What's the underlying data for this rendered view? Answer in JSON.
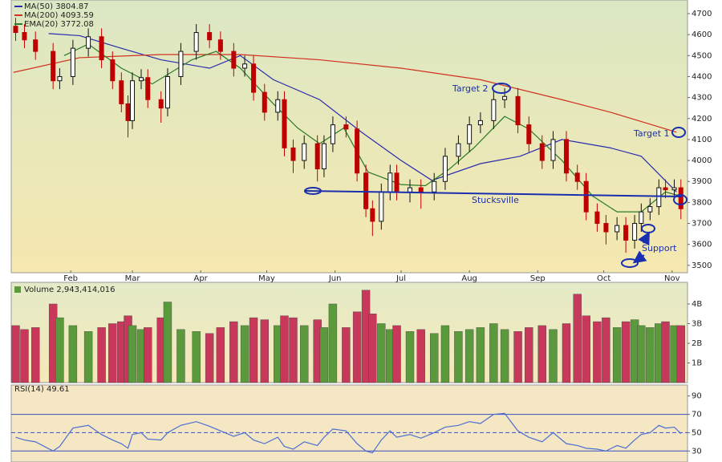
{
  "chart_data": [
    {
      "type": "candlestick",
      "x": [
        7,
        11,
        16,
        24,
        27,
        33,
        40,
        46,
        51,
        55,
        58,
        60,
        64,
        67,
        73,
        76,
        82,
        89,
        95,
        100,
        106,
        111,
        115,
        120,
        126,
        129,
        133,
        138,
        144,
        147,
        151,
        157,
        162,
        166,
        169,
        173,
        177,
        180,
        186,
        191,
        197,
        202,
        208,
        213,
        218,
        224,
        229,
        235,
        240,
        246,
        251,
        257,
        262,
        266,
        271,
        275,
        280,
        284,
        288,
        291,
        295,
        299,
        302,
        306,
        309
      ],
      "open": [
        4640,
        4610,
        4575,
        4520,
        4380,
        4400,
        4535,
        4590,
        4480,
        4380,
        4270,
        4190,
        4380,
        4395,
        4290,
        4250,
        4400,
        4520,
        4610,
        4575,
        4520,
        4440,
        4460,
        4325,
        4230,
        4290,
        4060,
        4000,
        4080,
        3960,
        4080,
        4170,
        4150,
        3940,
        3770,
        3710,
        3850,
        3940,
        3850,
        3870,
        3850,
        3900,
        4020,
        4080,
        4170,
        4190,
        4290,
        4305,
        4170,
        4080,
        4000,
        4100,
        3940,
        3900,
        3755,
        3700,
        3660,
        3690,
        3620,
        3700,
        3755,
        3780,
        3870,
        3860,
        3870
      ],
      "high": [
        4680,
        4650,
        4615,
        4560,
        4440,
        4575,
        4630,
        4630,
        4520,
        4420,
        4310,
        4420,
        4435,
        4435,
        4330,
        4440,
        4560,
        4650,
        4650,
        4615,
        4560,
        4500,
        4500,
        4365,
        4330,
        4330,
        4100,
        4120,
        4120,
        4120,
        4210,
        4210,
        4190,
        3980,
        3810,
        3890,
        3980,
        3980,
        3910,
        3910,
        3940,
        4060,
        4120,
        4210,
        4230,
        4330,
        4345,
        4345,
        4210,
        4120,
        4140,
        4140,
        3980,
        3940,
        3795,
        3740,
        3730,
        3730,
        3740,
        3795,
        3820,
        3910,
        3910,
        3910,
        3910
      ],
      "low": [
        4570,
        4535,
        4480,
        4340,
        4340,
        4360,
        4495,
        4440,
        4340,
        4230,
        4110,
        4150,
        4340,
        4250,
        4180,
        4210,
        4360,
        4480,
        4535,
        4480,
        4400,
        4400,
        4285,
        4190,
        4190,
        4020,
        3940,
        3960,
        3900,
        3920,
        4040,
        4110,
        3900,
        3730,
        3640,
        3670,
        3810,
        3810,
        3800,
        3770,
        3810,
        3860,
        3980,
        4040,
        4130,
        4150,
        4250,
        4130,
        4040,
        3960,
        3960,
        3900,
        3860,
        3715,
        3660,
        3600,
        3620,
        3560,
        3580,
        3660,
        3715,
        3740,
        3820,
        3820,
        3720
      ],
      "close": [
        4610,
        4575,
        4520,
        4380,
        4400,
        4535,
        4590,
        4480,
        4380,
        4270,
        4190,
        4380,
        4395,
        4290,
        4250,
        4400,
        4520,
        4610,
        4575,
        4520,
        4440,
        4460,
        4325,
        4230,
        4290,
        4060,
        4000,
        4080,
        3960,
        4080,
        4170,
        4150,
        3940,
        3770,
        3710,
        3850,
        3940,
        3850,
        3870,
        3850,
        3900,
        4020,
        4080,
        4170,
        4190,
        4290,
        4305,
        4170,
        4080,
        4000,
        4100,
        3940,
        3900,
        3755,
        3700,
        3660,
        3690,
        3620,
        3700,
        3755,
        3780,
        3870,
        3860,
        3870,
        3770
      ],
      "up_color": "#111111",
      "down_color": "#c00000",
      "overlays": [
        {
          "name": "MA(50)",
          "legend_value": 3804.87,
          "color": "#2b2bb0",
          "x": [
            22,
            36,
            55,
            73,
            95,
            109,
            124,
            145,
            164,
            182,
            196,
            218,
            236,
            255,
            277,
            291,
            307
          ],
          "values": [
            4605,
            4595,
            4535,
            4480,
            4440,
            4500,
            4385,
            4290,
            4135,
            4000,
            3905,
            3985,
            4020,
            4100,
            4060,
            4020,
            3850
          ]
        },
        {
          "name": "MA(200)",
          "legend_value": 4093.59,
          "color": "#d03020",
          "x": [
            6,
            36,
            73,
            109,
            145,
            182,
            218,
            255,
            277,
            307
          ],
          "values": [
            4420,
            4490,
            4505,
            4505,
            4480,
            4440,
            4385,
            4290,
            4230,
            4135
          ]
        },
        {
          "name": "EMA(20)",
          "legend_value": 3772.08,
          "color": "#2a7a2a",
          "x": [
            29,
            40,
            55,
            69,
            87,
            98,
            109,
            124,
            135,
            145,
            156,
            167,
            182,
            193,
            204,
            215,
            229,
            240,
            255,
            269,
            280,
            291,
            302,
            309
          ],
          "values": [
            4500,
            4555,
            4440,
            4365,
            4480,
            4520,
            4440,
            4270,
            4155,
            4080,
            4155,
            3945,
            3885,
            3880,
            3960,
            4060,
            4210,
            4150,
            4000,
            3830,
            3755,
            3755,
            3850,
            3830
          ]
        }
      ],
      "xlim": [
        5,
        312
      ],
      "xticks": [
        {
          "value": 32,
          "label": "Feb"
        },
        {
          "value": 60,
          "label": "Mar"
        },
        {
          "value": 91,
          "label": "Apr"
        },
        {
          "value": 121,
          "label": "May"
        },
        {
          "value": 152,
          "label": "Jun"
        },
        {
          "value": 182,
          "label": "Jul"
        },
        {
          "value": 213,
          "label": "Aug"
        },
        {
          "value": 244,
          "label": "Sep"
        },
        {
          "value": 274,
          "label": "Oct"
        },
        {
          "value": 305,
          "label": "Nov"
        }
      ],
      "ylim": [
        3465,
        4765
      ],
      "yticks": [
        3500,
        3600,
        3700,
        3800,
        3900,
        4000,
        4100,
        4200,
        4300,
        4400,
        4500,
        4600,
        4700
      ],
      "annotations": [
        "Target 2",
        "Target 1",
        "Stucksville",
        "Support"
      ]
    },
    {
      "type": "bar",
      "title": "Volume 2,943,414,016",
      "values": [
        2900000000,
        2700000000,
        2800000000,
        4000000000,
        3300000000,
        2900000000,
        2600000000,
        2800000000,
        3000000000,
        3100000000,
        3400000000,
        2900000000,
        2700000000,
        2800000000,
        3300000000,
        4100000000,
        2700000000,
        2600000000,
        2500000000,
        2800000000,
        3100000000,
        2900000000,
        3300000000,
        3200000000,
        2900000000,
        3400000000,
        3300000000,
        2900000000,
        3200000000,
        2800000000,
        4000000000,
        2800000000,
        3600000000,
        4700000000,
        3500000000,
        3000000000,
        2700000000,
        2900000000,
        2600000000,
        2700000000,
        2500000000,
        2900000000,
        2600000000,
        2700000000,
        2800000000,
        3000000000,
        2700000000,
        2600000000,
        2800000000,
        2900000000,
        2700000000,
        3000000000,
        4500000000,
        3400000000,
        3100000000,
        3300000000,
        2800000000,
        3100000000,
        3200000000,
        2900000000,
        2800000000,
        3000000000,
        3100000000,
        2900000000,
        2900000000
      ],
      "up_color": "#5a9a3c",
      "down_color": "#c8385a",
      "ylim": [
        0,
        5100000000
      ],
      "yticks": [
        {
          "value": 1000000000,
          "label": "1B"
        },
        {
          "value": 2000000000,
          "label": "2B"
        },
        {
          "value": 3000000000,
          "label": "3B"
        },
        {
          "value": 4000000000,
          "label": "4B"
        }
      ]
    },
    {
      "type": "line",
      "title": "RSI(14) 49.61",
      "color": "#4a6fd0",
      "values": [
        45,
        42,
        40,
        30,
        35,
        55,
        58,
        48,
        42,
        38,
        33,
        48,
        50,
        43,
        42,
        50,
        58,
        62,
        57,
        52,
        46,
        50,
        42,
        38,
        45,
        35,
        32,
        40,
        36,
        45,
        54,
        52,
        38,
        30,
        28,
        42,
        52,
        45,
        48,
        44,
        50,
        56,
        58,
        62,
        60,
        70,
        71,
        52,
        45,
        40,
        50,
        38,
        36,
        33,
        32,
        30,
        36,
        33,
        42,
        48,
        50,
        58,
        55,
        56,
        49
      ],
      "ylim": [
        18,
        102
      ],
      "yticks": [
        30,
        50,
        70,
        90
      ]
    }
  ]
}
